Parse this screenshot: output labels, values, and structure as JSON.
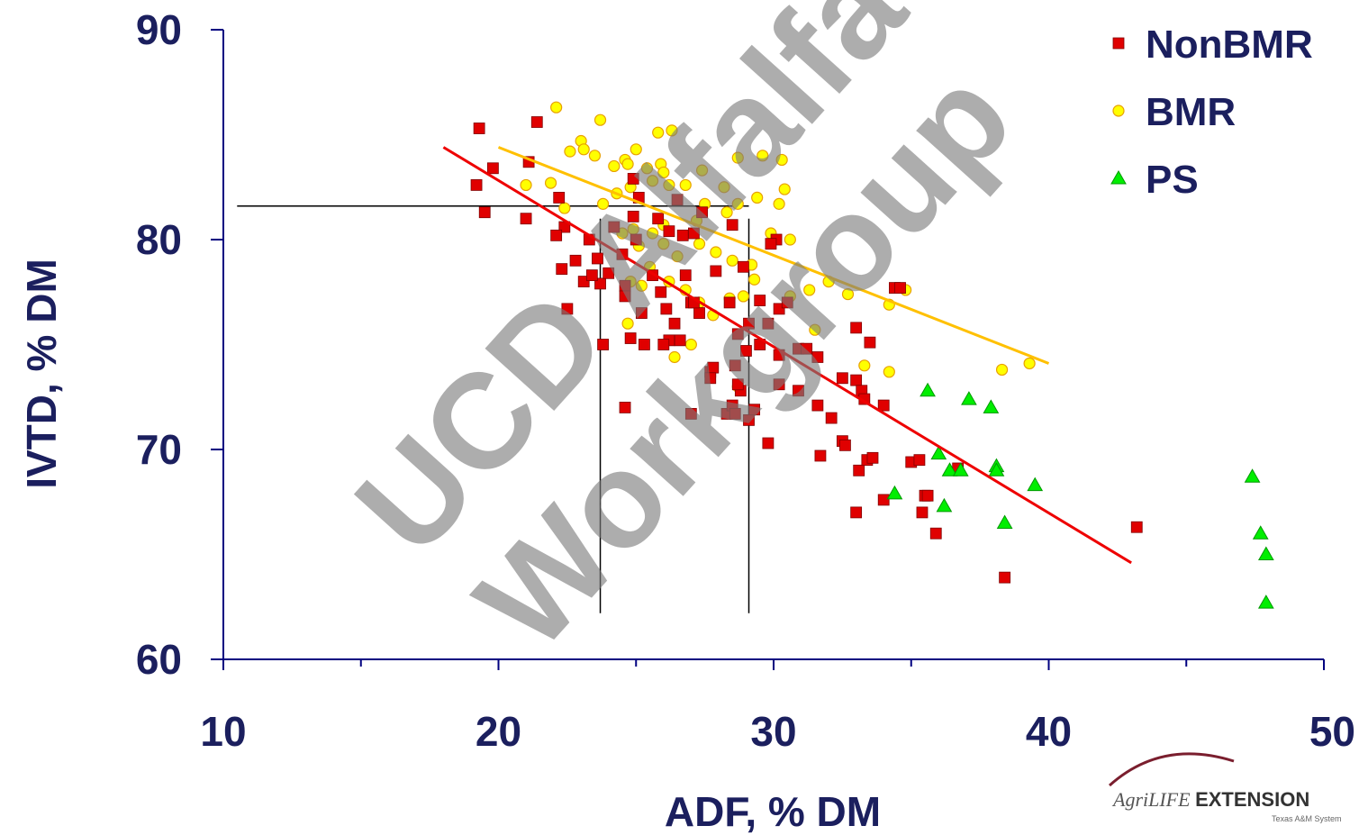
{
  "chart_data": {
    "type": "scatter",
    "title": "",
    "xlabel": "ADF, % DM",
    "ylabel": "IVTD, % DM",
    "xlim": [
      10,
      50
    ],
    "ylim": [
      60,
      90
    ],
    "xticks": [
      "10",
      "20",
      "30",
      "40",
      "50"
    ],
    "yticks": [
      "60",
      "70",
      "80",
      "90"
    ],
    "legend_position": "top-right",
    "grid": false,
    "series": [
      {
        "name": "NonBMR",
        "marker": "square",
        "color": "#e00000",
        "points": [
          [
            19.3,
            85.3
          ],
          [
            21.4,
            85.6
          ],
          [
            19.8,
            83.4
          ],
          [
            21.1,
            83.7
          ],
          [
            19.2,
            82.6
          ],
          [
            19.5,
            81.3
          ],
          [
            21.0,
            81.0
          ],
          [
            22.2,
            82.0
          ],
          [
            22.4,
            80.6
          ],
          [
            22.1,
            80.2
          ],
          [
            22.8,
            79.0
          ],
          [
            23.3,
            80.0
          ],
          [
            22.3,
            78.6
          ],
          [
            23.6,
            79.1
          ],
          [
            23.1,
            78.0
          ],
          [
            23.7,
            77.9
          ],
          [
            22.5,
            76.7
          ],
          [
            23.8,
            75.0
          ],
          [
            24.2,
            80.6
          ],
          [
            24.5,
            79.3
          ],
          [
            24.9,
            81.1
          ],
          [
            25.0,
            80.0
          ],
          [
            24.6,
            77.8
          ],
          [
            24.6,
            77.3
          ],
          [
            24.8,
            75.3
          ],
          [
            25.3,
            75.0
          ],
          [
            25.2,
            76.5
          ],
          [
            25.6,
            78.3
          ],
          [
            25.9,
            77.5
          ],
          [
            26.1,
            76.7
          ],
          [
            26.2,
            75.2
          ],
          [
            26.0,
            75.0
          ],
          [
            26.4,
            76.0
          ],
          [
            26.6,
            75.2
          ],
          [
            26.8,
            78.3
          ],
          [
            27.0,
            77.0
          ],
          [
            27.3,
            76.5
          ],
          [
            27.1,
            80.3
          ],
          [
            27.4,
            81.3
          ],
          [
            26.5,
            81.9
          ],
          [
            26.2,
            80.4
          ],
          [
            25.8,
            81.0
          ],
          [
            24.9,
            82.9
          ],
          [
            25.1,
            82.0
          ],
          [
            27.0,
            71.7
          ],
          [
            27.7,
            73.7
          ],
          [
            27.8,
            73.9
          ],
          [
            28.3,
            71.7
          ],
          [
            28.5,
            72.1
          ],
          [
            28.8,
            72.8
          ],
          [
            29.1,
            71.4
          ],
          [
            28.7,
            73.1
          ],
          [
            28.6,
            74.0
          ],
          [
            28.7,
            75.5
          ],
          [
            29.1,
            76.0
          ],
          [
            29.0,
            74.7
          ],
          [
            29.5,
            75.0
          ],
          [
            29.8,
            76.0
          ],
          [
            29.5,
            77.1
          ],
          [
            30.2,
            76.7
          ],
          [
            30.5,
            77.0
          ],
          [
            30.1,
            80.0
          ],
          [
            29.9,
            79.8
          ],
          [
            30.2,
            74.5
          ],
          [
            30.9,
            74.8
          ],
          [
            31.2,
            74.8
          ],
          [
            31.6,
            74.4
          ],
          [
            30.9,
            72.8
          ],
          [
            30.2,
            73.1
          ],
          [
            31.6,
            72.1
          ],
          [
            32.1,
            71.5
          ],
          [
            31.7,
            69.7
          ],
          [
            32.5,
            70.4
          ],
          [
            32.6,
            70.2
          ],
          [
            32.5,
            73.4
          ],
          [
            33.0,
            73.3
          ],
          [
            33.2,
            72.8
          ],
          [
            33.3,
            72.4
          ],
          [
            33.0,
            75.8
          ],
          [
            33.5,
            75.1
          ],
          [
            33.1,
            69.0
          ],
          [
            33.4,
            69.5
          ],
          [
            33.6,
            69.6
          ],
          [
            33.0,
            67.0
          ],
          [
            34.0,
            72.1
          ],
          [
            34.0,
            67.6
          ],
          [
            34.4,
            77.7
          ],
          [
            34.6,
            77.7
          ],
          [
            35.0,
            69.4
          ],
          [
            35.3,
            69.5
          ],
          [
            35.4,
            67.0
          ],
          [
            35.5,
            67.8
          ],
          [
            35.6,
            67.8
          ],
          [
            35.9,
            66.0
          ],
          [
            36.7,
            69.1
          ],
          [
            38.4,
            63.9
          ],
          [
            43.2,
            66.3
          ],
          [
            28.4,
            77.0
          ],
          [
            27.9,
            78.5
          ],
          [
            28.9,
            78.7
          ],
          [
            29.3,
            71.9
          ],
          [
            28.6,
            71.7
          ],
          [
            27.7,
            73.4
          ],
          [
            24.6,
            72.0
          ],
          [
            29.8,
            70.3
          ],
          [
            28.5,
            80.7
          ],
          [
            23.4,
            78.3
          ],
          [
            24.0,
            78.4
          ],
          [
            26.7,
            80.2
          ],
          [
            27.1,
            77.0
          ]
        ]
      },
      {
        "name": "BMR",
        "marker": "circle",
        "color": "#ffff00",
        "points": [
          [
            22.1,
            86.3
          ],
          [
            23.7,
            85.7
          ],
          [
            25.8,
            85.1
          ],
          [
            26.3,
            85.2
          ],
          [
            23.0,
            84.7
          ],
          [
            22.6,
            84.2
          ],
          [
            23.1,
            84.3
          ],
          [
            23.5,
            84.0
          ],
          [
            24.2,
            83.5
          ],
          [
            24.6,
            83.8
          ],
          [
            24.7,
            83.6
          ],
          [
            25.0,
            84.3
          ],
          [
            25.4,
            83.4
          ],
          [
            25.9,
            83.6
          ],
          [
            26.0,
            83.2
          ],
          [
            27.4,
            83.3
          ],
          [
            28.7,
            83.9
          ],
          [
            29.6,
            84.0
          ],
          [
            30.3,
            83.8
          ],
          [
            21.9,
            82.7
          ],
          [
            21.0,
            82.6
          ],
          [
            22.4,
            81.5
          ],
          [
            23.8,
            81.7
          ],
          [
            24.3,
            82.2
          ],
          [
            24.8,
            82.5
          ],
          [
            25.6,
            82.8
          ],
          [
            26.2,
            82.6
          ],
          [
            26.8,
            82.6
          ],
          [
            27.5,
            81.7
          ],
          [
            28.2,
            82.5
          ],
          [
            28.7,
            81.7
          ],
          [
            29.4,
            82.0
          ],
          [
            30.2,
            81.7
          ],
          [
            30.4,
            82.4
          ],
          [
            24.5,
            80.3
          ],
          [
            24.9,
            80.5
          ],
          [
            25.1,
            79.7
          ],
          [
            25.6,
            80.3
          ],
          [
            26.0,
            79.8
          ],
          [
            26.5,
            79.2
          ],
          [
            27.3,
            79.8
          ],
          [
            27.9,
            79.4
          ],
          [
            28.5,
            79.0
          ],
          [
            29.2,
            78.8
          ],
          [
            29.9,
            80.3
          ],
          [
            30.6,
            80.0
          ],
          [
            24.8,
            78.0
          ],
          [
            25.2,
            77.8
          ],
          [
            25.5,
            78.7
          ],
          [
            26.2,
            78.0
          ],
          [
            26.8,
            77.6
          ],
          [
            27.3,
            77.0
          ],
          [
            27.8,
            76.4
          ],
          [
            28.4,
            77.2
          ],
          [
            28.9,
            77.3
          ],
          [
            29.3,
            78.1
          ],
          [
            30.6,
            77.3
          ],
          [
            31.3,
            77.6
          ],
          [
            32.0,
            78.0
          ],
          [
            32.7,
            77.4
          ],
          [
            34.8,
            77.6
          ],
          [
            34.2,
            76.9
          ],
          [
            24.7,
            76.0
          ],
          [
            26.4,
            74.4
          ],
          [
            27.0,
            75.0
          ],
          [
            31.5,
            75.7
          ],
          [
            33.3,
            74.0
          ],
          [
            34.2,
            73.7
          ],
          [
            38.3,
            73.8
          ],
          [
            39.3,
            74.1
          ],
          [
            28.7,
            73.0
          ],
          [
            26.0,
            80.7
          ],
          [
            27.2,
            80.9
          ],
          [
            28.3,
            81.3
          ]
        ]
      },
      {
        "name": "PS",
        "marker": "triangle",
        "color": "#00ee00",
        "points": [
          [
            35.6,
            72.8
          ],
          [
            37.1,
            72.4
          ],
          [
            37.9,
            72.0
          ],
          [
            36.0,
            69.8
          ],
          [
            36.4,
            69.0
          ],
          [
            36.8,
            69.0
          ],
          [
            38.1,
            69.2
          ],
          [
            38.1,
            69.0
          ],
          [
            39.5,
            68.3
          ],
          [
            34.4,
            67.9
          ],
          [
            36.2,
            67.3
          ],
          [
            38.4,
            66.5
          ],
          [
            47.4,
            68.7
          ],
          [
            47.7,
            66.0
          ],
          [
            47.9,
            65.0
          ],
          [
            47.9,
            62.7
          ]
        ]
      }
    ],
    "trendlines": [
      {
        "series": "NonBMR",
        "x": [
          18.0,
          43.0
        ],
        "y": [
          84.4,
          64.6
        ]
      },
      {
        "series": "BMR",
        "x": [
          20.0,
          40.0
        ],
        "y": [
          84.4,
          74.1
        ]
      }
    ],
    "reference_lines": {
      "horizontal": {
        "y": 81.6,
        "x_from": 10.5,
        "x_to": 29.1
      },
      "vertical": [
        {
          "x": 23.7,
          "y_from": 62.2,
          "y_to": 81.0
        },
        {
          "x": 29.1,
          "y_from": 62.2,
          "y_to": 81.0
        }
      ]
    }
  },
  "watermark": {
    "line1": "UCD Alfalfa",
    "line2": "Workgroup"
  },
  "logo": {
    "brand_italic": "Agri",
    "brand_mid": "LIFE ",
    "brand_bold": "EXTENSION",
    "subtitle": "Texas A&M System"
  }
}
